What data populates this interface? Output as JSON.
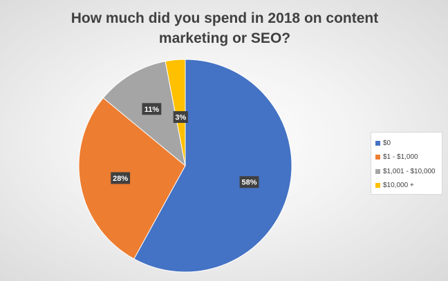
{
  "chart_data": {
    "type": "pie",
    "title": "How much did you spend in 2018 on content marketing or SEO?",
    "title_lines": [
      "How much did you spend in 2018 on content",
      "marketing or SEO?"
    ],
    "categories": [
      "$0",
      "$1 - $1,000",
      "$1,001 - $10,000",
      "$10,000 +"
    ],
    "values": [
      58,
      28,
      11,
      3
    ],
    "data_labels": [
      "58%",
      "28%",
      "11%",
      "3%"
    ],
    "colors": [
      "#4472c4",
      "#ed7d31",
      "#a5a5a5",
      "#ffc000"
    ],
    "start_angle_deg": 0,
    "direction": "clockwise",
    "legend_position": "right",
    "grid": false
  }
}
